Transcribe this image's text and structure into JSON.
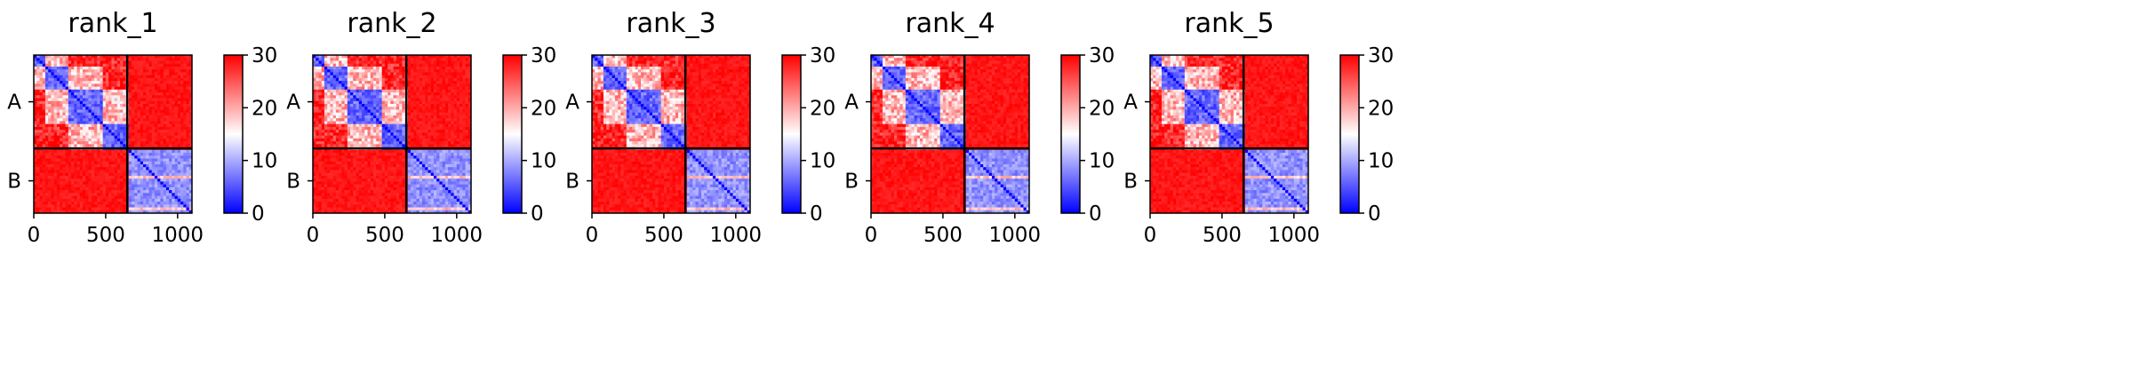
{
  "chart_data": [
    {
      "type": "heatmap",
      "title": "rank_1",
      "x_ticks": [
        0,
        500,
        1000
      ],
      "xlim": [
        0,
        1100
      ],
      "y_ticks": [
        "A",
        "B"
      ],
      "groups": [
        {
          "name": "A",
          "range": [
            0,
            650
          ]
        },
        {
          "name": "B",
          "range": [
            650,
            1100
          ]
        }
      ],
      "colorbar": {
        "ticks": [
          0,
          10,
          20,
          30
        ],
        "range": [
          0,
          30
        ],
        "colormap": "bwr",
        "colors": [
          "#0000ff",
          "#ffffff",
          "#ff0000"
        ]
      },
      "block_means": {
        "A-A": 8,
        "A-B": 30,
        "B-A": 30,
        "B-B": 6
      }
    },
    {
      "type": "heatmap",
      "title": "rank_2",
      "x_ticks": [
        0,
        500,
        1000
      ],
      "xlim": [
        0,
        1100
      ],
      "y_ticks": [
        "A",
        "B"
      ],
      "groups": [
        {
          "name": "A",
          "range": [
            0,
            650
          ]
        },
        {
          "name": "B",
          "range": [
            650,
            1100
          ]
        }
      ],
      "colorbar": {
        "ticks": [
          0,
          10,
          20,
          30
        ],
        "range": [
          0,
          30
        ],
        "colormap": "bwr",
        "colors": [
          "#0000ff",
          "#ffffff",
          "#ff0000"
        ]
      },
      "block_means": {
        "A-A": 8,
        "A-B": 30,
        "B-A": 30,
        "B-B": 6
      }
    },
    {
      "type": "heatmap",
      "title": "rank_3",
      "x_ticks": [
        0,
        500,
        1000
      ],
      "xlim": [
        0,
        1100
      ],
      "y_ticks": [
        "A",
        "B"
      ],
      "groups": [
        {
          "name": "A",
          "range": [
            0,
            650
          ]
        },
        {
          "name": "B",
          "range": [
            650,
            1100
          ]
        }
      ],
      "colorbar": {
        "ticks": [
          0,
          10,
          20,
          30
        ],
        "range": [
          0,
          30
        ],
        "colormap": "bwr",
        "colors": [
          "#0000ff",
          "#ffffff",
          "#ff0000"
        ]
      },
      "block_means": {
        "A-A": 8,
        "A-B": 30,
        "B-A": 30,
        "B-B": 6
      }
    },
    {
      "type": "heatmap",
      "title": "rank_4",
      "x_ticks": [
        0,
        500,
        1000
      ],
      "xlim": [
        0,
        1100
      ],
      "y_ticks": [
        "A",
        "B"
      ],
      "groups": [
        {
          "name": "A",
          "range": [
            0,
            650
          ]
        },
        {
          "name": "B",
          "range": [
            650,
            1100
          ]
        }
      ],
      "colorbar": {
        "ticks": [
          0,
          10,
          20,
          30
        ],
        "range": [
          0,
          30
        ],
        "colormap": "bwr",
        "colors": [
          "#0000ff",
          "#ffffff",
          "#ff0000"
        ]
      },
      "block_means": {
        "A-A": 8,
        "A-B": 30,
        "B-A": 30,
        "B-B": 6
      }
    },
    {
      "type": "heatmap",
      "title": "rank_5",
      "x_ticks": [
        0,
        500,
        1000
      ],
      "xlim": [
        0,
        1100
      ],
      "y_ticks": [
        "A",
        "B"
      ],
      "groups": [
        {
          "name": "A",
          "range": [
            0,
            650
          ]
        },
        {
          "name": "B",
          "range": [
            650,
            1100
          ]
        }
      ],
      "colorbar": {
        "ticks": [
          0,
          10,
          20,
          30
        ],
        "range": [
          0,
          30
        ],
        "colormap": "bwr",
        "colors": [
          "#0000ff",
          "#ffffff",
          "#ff0000"
        ]
      },
      "block_means": {
        "A-A": 8,
        "A-B": 30,
        "B-A": 30,
        "B-B": 6
      }
    }
  ]
}
